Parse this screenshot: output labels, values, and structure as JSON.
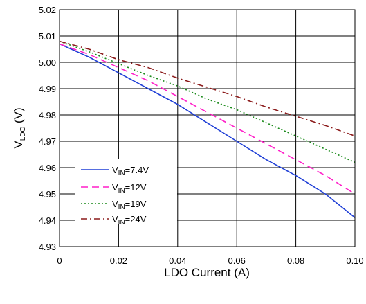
{
  "chart_data": {
    "type": "line",
    "title": "",
    "xlabel": "LDO Current (A)",
    "ylabel": {
      "main": "V",
      "sub": "LDO",
      "unit": " (V)"
    },
    "xlim": [
      0,
      0.1
    ],
    "ylim": [
      4.93,
      5.02
    ],
    "x_ticks": [
      "0",
      "0.02",
      "0.04",
      "0.06",
      "0.08",
      "0.10"
    ],
    "y_ticks": [
      "4.93",
      "4.94",
      "4.95",
      "4.96",
      "4.97",
      "4.98",
      "4.99",
      "5.00",
      "5.01",
      "5.02"
    ],
    "grid": true,
    "legend_position": "lower-left",
    "series": [
      {
        "label_main": "V",
        "label_sub": "IN",
        "label_rest": "=7.4V",
        "color": "#1f3fd6",
        "dash": "solid",
        "x": [
          0,
          0.01,
          0.02,
          0.03,
          0.04,
          0.05,
          0.06,
          0.07,
          0.08,
          0.09,
          0.1
        ],
        "y": [
          5.007,
          5.002,
          4.996,
          4.99,
          4.984,
          4.977,
          4.97,
          4.963,
          4.957,
          4.95,
          4.941
        ]
      },
      {
        "label_main": "V",
        "label_sub": "IN",
        "label_rest": "=12V",
        "color": "#ff1fc8",
        "dash": "long-dash",
        "x": [
          0,
          0.01,
          0.02,
          0.03,
          0.04,
          0.05,
          0.06,
          0.07,
          0.08,
          0.09,
          0.1
        ],
        "y": [
          5.007,
          5.003,
          4.998,
          4.993,
          4.987,
          4.981,
          4.975,
          4.969,
          4.963,
          4.957,
          4.95
        ]
      },
      {
        "label_main": "V",
        "label_sub": "IN",
        "label_rest": "=19V",
        "color": "#1a8a1a",
        "dash": "dotted",
        "x": [
          0,
          0.01,
          0.02,
          0.03,
          0.04,
          0.05,
          0.06,
          0.07,
          0.08,
          0.09,
          0.1
        ],
        "y": [
          5.008,
          5.004,
          4.9995,
          4.995,
          4.991,
          4.986,
          4.982,
          4.977,
          4.972,
          4.967,
          4.962
        ]
      },
      {
        "label_main": "V",
        "label_sub": "IN",
        "label_rest": "=24V",
        "color": "#8b1a1a",
        "dash": "dash-dot",
        "x": [
          0,
          0.01,
          0.02,
          0.03,
          0.04,
          0.05,
          0.06,
          0.07,
          0.08,
          0.09,
          0.1
        ],
        "y": [
          5.008,
          5.005,
          5.001,
          4.998,
          4.994,
          4.9905,
          4.987,
          4.983,
          4.9795,
          4.976,
          4.972
        ]
      }
    ]
  }
}
